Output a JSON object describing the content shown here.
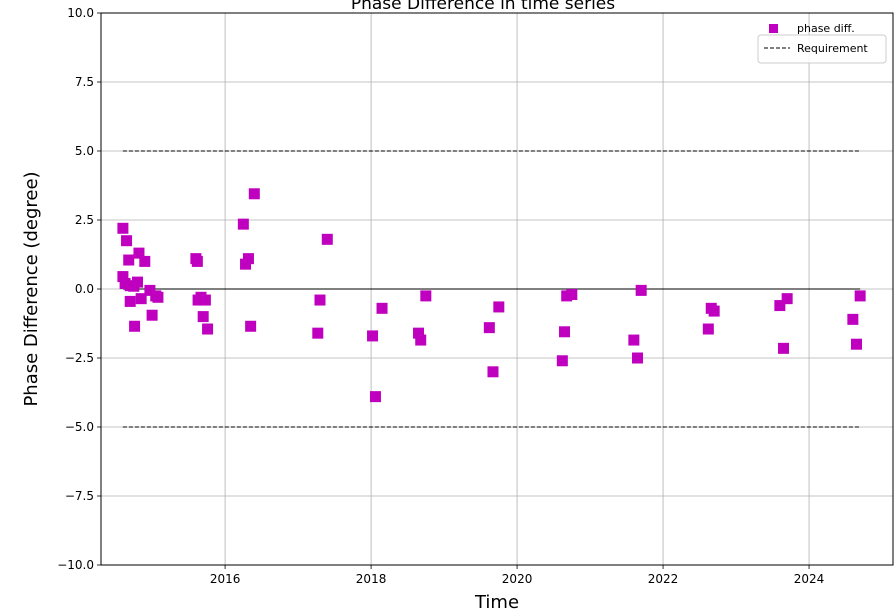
{
  "chart_data": {
    "type": "scatter",
    "title": "Phase Difference in time series",
    "xlabel": "Time",
    "ylabel": "Phase Difference (degree)",
    "xlim": [
      2014.3,
      2025.15
    ],
    "ylim": [
      -10.0,
      10.0
    ],
    "x_ticks": [
      2016,
      2018,
      2020,
      2022,
      2024
    ],
    "x_tick_labels": [
      "2016",
      "2018",
      "2020",
      "2022",
      "2024"
    ],
    "y_ticks": [
      -10.0,
      -7.5,
      -5.0,
      -2.5,
      0.0,
      2.5,
      5.0,
      7.5,
      10.0
    ],
    "y_tick_labels": [
      "−10.0",
      "−7.5",
      "−5.0",
      "−2.5",
      "0.0",
      "2.5",
      "5.0",
      "7.5",
      "10.0"
    ],
    "grid": true,
    "legend_position": "top-right",
    "zero_line": {
      "y": 0.0,
      "x_range": [
        2014.6,
        2024.7
      ],
      "color": "#000000"
    },
    "series": [
      {
        "name": "phase diff.",
        "marker": "square",
        "color": "#bf00bf",
        "points": [
          [
            2014.6,
            2.2
          ],
          [
            2014.6,
            0.45
          ],
          [
            2014.63,
            0.2
          ],
          [
            2014.65,
            1.75
          ],
          [
            2014.68,
            1.05
          ],
          [
            2014.7,
            0.12
          ],
          [
            2014.7,
            -0.45
          ],
          [
            2014.75,
            0.1
          ],
          [
            2014.76,
            -1.35
          ],
          [
            2014.8,
            0.25
          ],
          [
            2014.82,
            1.3
          ],
          [
            2014.85,
            -0.35
          ],
          [
            2014.9,
            1.0
          ],
          [
            2014.97,
            -0.05
          ],
          [
            2015.0,
            -0.95
          ],
          [
            2015.05,
            -0.25
          ],
          [
            2015.08,
            -0.3
          ],
          [
            2015.6,
            1.1
          ],
          [
            2015.62,
            1.0
          ],
          [
            2015.63,
            -0.4
          ],
          [
            2015.67,
            -0.3
          ],
          [
            2015.7,
            -1.0
          ],
          [
            2015.73,
            -0.4
          ],
          [
            2015.76,
            -1.45
          ],
          [
            2016.25,
            2.35
          ],
          [
            2016.28,
            0.9
          ],
          [
            2016.32,
            1.1
          ],
          [
            2016.35,
            -1.35
          ],
          [
            2016.4,
            3.45
          ],
          [
            2017.27,
            -1.6
          ],
          [
            2017.3,
            -0.4
          ],
          [
            2017.4,
            1.8
          ],
          [
            2018.02,
            -1.7
          ],
          [
            2018.06,
            -3.9
          ],
          [
            2018.15,
            -0.7
          ],
          [
            2018.65,
            -1.6
          ],
          [
            2018.68,
            -1.85
          ],
          [
            2018.75,
            -0.25
          ],
          [
            2019.62,
            -1.4
          ],
          [
            2019.67,
            -3.0
          ],
          [
            2019.75,
            -0.65
          ],
          [
            2020.62,
            -2.6
          ],
          [
            2020.65,
            -1.55
          ],
          [
            2020.68,
            -0.25
          ],
          [
            2020.75,
            -0.2
          ],
          [
            2021.6,
            -1.85
          ],
          [
            2021.65,
            -2.5
          ],
          [
            2021.7,
            -0.05
          ],
          [
            2022.62,
            -1.45
          ],
          [
            2022.66,
            -0.7
          ],
          [
            2022.7,
            -0.8
          ],
          [
            2023.6,
            -0.6
          ],
          [
            2023.65,
            -2.15
          ],
          [
            2023.7,
            -0.35
          ],
          [
            2024.6,
            -1.1
          ],
          [
            2024.65,
            -2.0
          ],
          [
            2024.7,
            -0.25
          ]
        ]
      },
      {
        "name": "Requirement",
        "style": "dashed",
        "color": "#000000",
        "lines": [
          {
            "y": 5.0,
            "x_range": [
              2014.6,
              2024.7
            ]
          },
          {
            "y": -5.0,
            "x_range": [
              2014.6,
              2024.7
            ]
          }
        ]
      }
    ]
  }
}
